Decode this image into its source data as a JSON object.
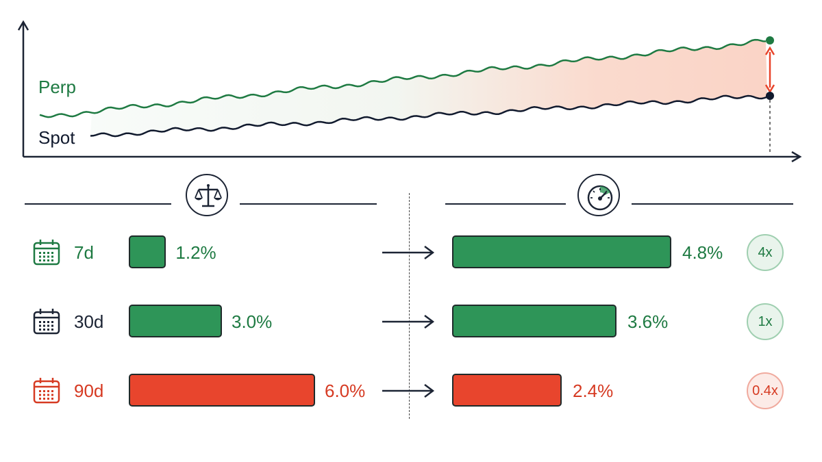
{
  "chart": {
    "series": [
      {
        "name": "Perp",
        "color": "#1e7a42"
      },
      {
        "name": "Spot",
        "color": "#111a2e"
      }
    ],
    "spread_color": "#e8442a"
  },
  "icons": {
    "left": "balance-scale-icon",
    "right": "speedometer-icon",
    "row": "calendar-icon",
    "arrow": "right-arrow-icon"
  },
  "rows": [
    {
      "period": "7d",
      "left_value": "1.2%",
      "left_fill": 0.2,
      "right_value": "4.8%",
      "right_fill": 0.8,
      "multiplier": "4x",
      "color": "#1e7a42",
      "bar_color": "#2e9558",
      "period_color": "#1e7a42",
      "badge_bg": "#e9f4ec",
      "badge_border": "#9fcfb0"
    },
    {
      "period": "30d",
      "left_value": "3.0%",
      "left_fill": 0.5,
      "right_value": "3.6%",
      "right_fill": 0.6,
      "multiplier": "1x",
      "color": "#1e7a42",
      "bar_color": "#2e9558",
      "period_color": "#1c2434",
      "badge_bg": "#e9f4ec",
      "badge_border": "#9fcfb0"
    },
    {
      "period": "90d",
      "left_value": "6.0%",
      "left_fill": 1.0,
      "right_value": "2.4%",
      "right_fill": 0.4,
      "multiplier": "0.4x",
      "color": "#d63a22",
      "bar_color": "#e8452d",
      "period_color": "#d63a22",
      "badge_bg": "#fcebe7",
      "badge_border": "#f0aa9e"
    }
  ]
}
